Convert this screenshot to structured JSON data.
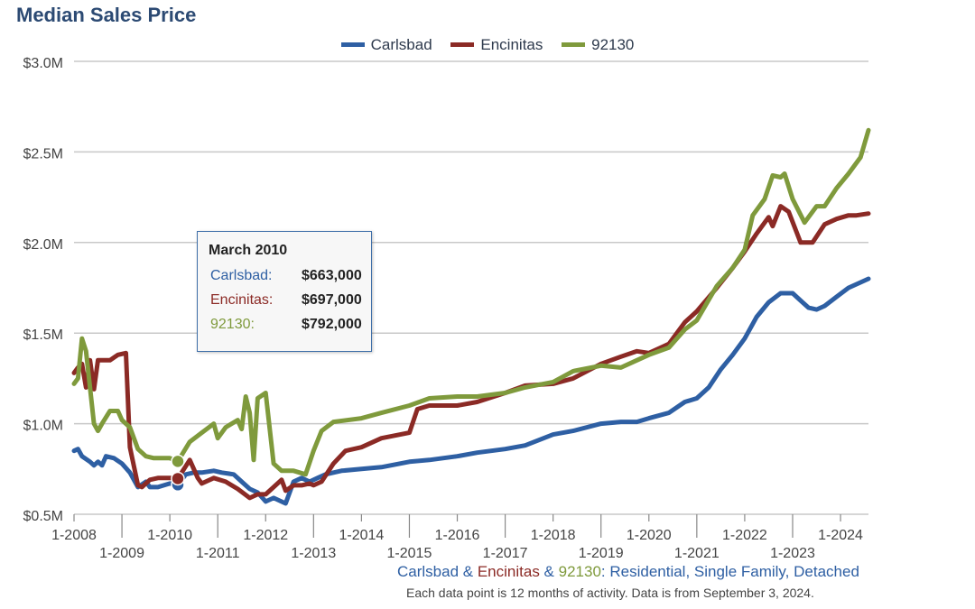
{
  "chart_data": {
    "type": "line",
    "title": "Median Sales Price",
    "y_tick_labels": [
      "$0.5M",
      "$1.0M",
      "$1.5M",
      "$2.0M",
      "$2.5M",
      "$3.0M"
    ],
    "y_ticks": [
      500000,
      1000000,
      1500000,
      2000000,
      2500000,
      3000000
    ],
    "ylim": [
      500000,
      3000000
    ],
    "x_range": [
      "2008-01",
      "2024-08"
    ],
    "x_tick_labels_upper": [
      "1-2008",
      "1-2010",
      "1-2012",
      "1-2014",
      "1-2016",
      "1-2018",
      "1-2020",
      "1-2022",
      "1-2024"
    ],
    "x_tick_labels_lower": [
      "1-2009",
      "1-2011",
      "1-2013",
      "1-2015",
      "1-2017",
      "1-2019",
      "1-2021",
      "1-2023"
    ],
    "grid": true,
    "legend_position": "top-center",
    "series": [
      {
        "name": "Carlsbad",
        "color": "#2e5fa3",
        "points": [
          [
            "2008-01",
            850000
          ],
          [
            "2008-02",
            860000
          ],
          [
            "2008-03",
            820000
          ],
          [
            "2008-05",
            790000
          ],
          [
            "2008-06",
            770000
          ],
          [
            "2008-07",
            790000
          ],
          [
            "2008-08",
            770000
          ],
          [
            "2008-09",
            820000
          ],
          [
            "2008-11",
            810000
          ],
          [
            "2009-01",
            780000
          ],
          [
            "2009-03",
            730000
          ],
          [
            "2009-05",
            650000
          ],
          [
            "2009-07",
            680000
          ],
          [
            "2009-08",
            650000
          ],
          [
            "2009-10",
            650000
          ],
          [
            "2010-01",
            670000
          ],
          [
            "2010-03",
            663000
          ],
          [
            "2010-05",
            720000
          ],
          [
            "2010-07",
            730000
          ],
          [
            "2010-09",
            730000
          ],
          [
            "2010-12",
            740000
          ],
          [
            "2011-02",
            730000
          ],
          [
            "2011-05",
            720000
          ],
          [
            "2011-07",
            680000
          ],
          [
            "2011-09",
            640000
          ],
          [
            "2011-11",
            620000
          ],
          [
            "2012-01",
            570000
          ],
          [
            "2012-03",
            590000
          ],
          [
            "2012-06",
            560000
          ],
          [
            "2012-08",
            680000
          ],
          [
            "2012-10",
            700000
          ],
          [
            "2012-12",
            680000
          ],
          [
            "2013-02",
            700000
          ],
          [
            "2013-04",
            720000
          ],
          [
            "2013-08",
            740000
          ],
          [
            "2014-01",
            750000
          ],
          [
            "2014-06",
            760000
          ],
          [
            "2015-01",
            790000
          ],
          [
            "2015-06",
            800000
          ],
          [
            "2016-01",
            820000
          ],
          [
            "2016-06",
            840000
          ],
          [
            "2017-01",
            860000
          ],
          [
            "2017-06",
            880000
          ],
          [
            "2018-01",
            940000
          ],
          [
            "2018-06",
            960000
          ],
          [
            "2019-01",
            1000000
          ],
          [
            "2019-06",
            1010000
          ],
          [
            "2019-10",
            1010000
          ],
          [
            "2020-01",
            1030000
          ],
          [
            "2020-06",
            1060000
          ],
          [
            "2020-10",
            1120000
          ],
          [
            "2021-01",
            1140000
          ],
          [
            "2021-04",
            1200000
          ],
          [
            "2021-07",
            1300000
          ],
          [
            "2021-10",
            1380000
          ],
          [
            "2022-01",
            1470000
          ],
          [
            "2022-04",
            1590000
          ],
          [
            "2022-07",
            1670000
          ],
          [
            "2022-10",
            1720000
          ],
          [
            "2023-01",
            1720000
          ],
          [
            "2023-03",
            1680000
          ],
          [
            "2023-05",
            1640000
          ],
          [
            "2023-07",
            1630000
          ],
          [
            "2023-09",
            1650000
          ],
          [
            "2023-12",
            1700000
          ],
          [
            "2024-03",
            1750000
          ],
          [
            "2024-06",
            1780000
          ],
          [
            "2024-08",
            1800000
          ]
        ]
      },
      {
        "name": "Encinitas",
        "color": "#8b2a25",
        "points": [
          [
            "2008-01",
            1280000
          ],
          [
            "2008-02",
            1310000
          ],
          [
            "2008-03",
            1330000
          ],
          [
            "2008-04",
            1200000
          ],
          [
            "2008-05",
            1350000
          ],
          [
            "2008-06",
            1190000
          ],
          [
            "2008-07",
            1350000
          ],
          [
            "2008-10",
            1350000
          ],
          [
            "2008-12",
            1380000
          ],
          [
            "2009-02",
            1390000
          ],
          [
            "2009-03",
            870000
          ],
          [
            "2009-05",
            660000
          ],
          [
            "2009-06",
            650000
          ],
          [
            "2009-08",
            690000
          ],
          [
            "2009-10",
            700000
          ],
          [
            "2010-01",
            700000
          ],
          [
            "2010-03",
            697000
          ],
          [
            "2010-06",
            800000
          ],
          [
            "2010-08",
            700000
          ],
          [
            "2010-09",
            670000
          ],
          [
            "2010-12",
            700000
          ],
          [
            "2011-03",
            680000
          ],
          [
            "2011-06",
            640000
          ],
          [
            "2011-09",
            590000
          ],
          [
            "2011-11",
            610000
          ],
          [
            "2012-01",
            610000
          ],
          [
            "2012-03",
            650000
          ],
          [
            "2012-05",
            690000
          ],
          [
            "2012-06",
            630000
          ],
          [
            "2012-08",
            660000
          ],
          [
            "2012-10",
            660000
          ],
          [
            "2012-12",
            670000
          ],
          [
            "2013-01",
            660000
          ],
          [
            "2013-03",
            680000
          ],
          [
            "2013-06",
            780000
          ],
          [
            "2013-09",
            850000
          ],
          [
            "2014-01",
            870000
          ],
          [
            "2014-06",
            920000
          ],
          [
            "2015-01",
            950000
          ],
          [
            "2015-03",
            1080000
          ],
          [
            "2015-06",
            1100000
          ],
          [
            "2016-01",
            1100000
          ],
          [
            "2016-06",
            1120000
          ],
          [
            "2017-01",
            1170000
          ],
          [
            "2017-06",
            1210000
          ],
          [
            "2018-01",
            1220000
          ],
          [
            "2018-06",
            1250000
          ],
          [
            "2019-01",
            1330000
          ],
          [
            "2019-06",
            1370000
          ],
          [
            "2019-10",
            1400000
          ],
          [
            "2020-01",
            1390000
          ],
          [
            "2020-06",
            1440000
          ],
          [
            "2020-10",
            1560000
          ],
          [
            "2021-01",
            1620000
          ],
          [
            "2021-06",
            1750000
          ],
          [
            "2021-10",
            1860000
          ],
          [
            "2022-01",
            1950000
          ],
          [
            "2022-04",
            2050000
          ],
          [
            "2022-07",
            2140000
          ],
          [
            "2022-08",
            2090000
          ],
          [
            "2022-10",
            2200000
          ],
          [
            "2022-12",
            2170000
          ],
          [
            "2023-03",
            2000000
          ],
          [
            "2023-06",
            2000000
          ],
          [
            "2023-09",
            2100000
          ],
          [
            "2023-12",
            2130000
          ],
          [
            "2024-03",
            2150000
          ],
          [
            "2024-05",
            2150000
          ],
          [
            "2024-08",
            2160000
          ]
        ]
      },
      {
        "name": "92130",
        "color": "#7f9a3c",
        "points": [
          [
            "2008-01",
            1220000
          ],
          [
            "2008-02",
            1250000
          ],
          [
            "2008-03",
            1470000
          ],
          [
            "2008-04",
            1400000
          ],
          [
            "2008-06",
            1000000
          ],
          [
            "2008-07",
            960000
          ],
          [
            "2008-08",
            1000000
          ],
          [
            "2008-10",
            1070000
          ],
          [
            "2008-12",
            1070000
          ],
          [
            "2009-01",
            1020000
          ],
          [
            "2009-03",
            980000
          ],
          [
            "2009-05",
            860000
          ],
          [
            "2009-07",
            820000
          ],
          [
            "2009-09",
            810000
          ],
          [
            "2009-12",
            810000
          ],
          [
            "2010-01",
            810000
          ],
          [
            "2010-03",
            792000
          ],
          [
            "2010-06",
            900000
          ],
          [
            "2010-09",
            950000
          ],
          [
            "2010-12",
            1000000
          ],
          [
            "2011-01",
            920000
          ],
          [
            "2011-03",
            980000
          ],
          [
            "2011-06",
            1020000
          ],
          [
            "2011-07",
            970000
          ],
          [
            "2011-08",
            1150000
          ],
          [
            "2011-09",
            1060000
          ],
          [
            "2011-10",
            800000
          ],
          [
            "2011-11",
            1140000
          ],
          [
            "2012-01",
            1170000
          ],
          [
            "2012-03",
            780000
          ],
          [
            "2012-05",
            740000
          ],
          [
            "2012-08",
            740000
          ],
          [
            "2012-11",
            720000
          ],
          [
            "2013-01",
            850000
          ],
          [
            "2013-03",
            960000
          ],
          [
            "2013-06",
            1010000
          ],
          [
            "2014-01",
            1030000
          ],
          [
            "2014-06",
            1060000
          ],
          [
            "2015-01",
            1100000
          ],
          [
            "2015-06",
            1140000
          ],
          [
            "2016-01",
            1150000
          ],
          [
            "2016-06",
            1150000
          ],
          [
            "2017-01",
            1170000
          ],
          [
            "2017-06",
            1200000
          ],
          [
            "2018-01",
            1230000
          ],
          [
            "2018-06",
            1290000
          ],
          [
            "2019-01",
            1320000
          ],
          [
            "2019-06",
            1310000
          ],
          [
            "2019-10",
            1350000
          ],
          [
            "2020-01",
            1380000
          ],
          [
            "2020-06",
            1420000
          ],
          [
            "2020-10",
            1520000
          ],
          [
            "2021-01",
            1570000
          ],
          [
            "2021-06",
            1760000
          ],
          [
            "2021-10",
            1860000
          ],
          [
            "2022-01",
            1960000
          ],
          [
            "2022-03",
            2150000
          ],
          [
            "2022-06",
            2240000
          ],
          [
            "2022-08",
            2370000
          ],
          [
            "2022-10",
            2360000
          ],
          [
            "2022-11",
            2380000
          ],
          [
            "2023-01",
            2240000
          ],
          [
            "2023-04",
            2110000
          ],
          [
            "2023-07",
            2200000
          ],
          [
            "2023-09",
            2200000
          ],
          [
            "2023-12",
            2300000
          ],
          [
            "2024-03",
            2380000
          ],
          [
            "2024-06",
            2470000
          ],
          [
            "2024-08",
            2620000
          ]
        ]
      }
    ],
    "highlight_month": "2010-03"
  },
  "legend": [
    "Carlsbad",
    "Encinitas",
    "92130"
  ],
  "tooltip": {
    "title": "March 2010",
    "rows": [
      {
        "label": "Carlsbad:",
        "value": "$663,000",
        "color": "#2e5fa3"
      },
      {
        "label": "Encinitas:",
        "value": "$697,000",
        "color": "#8b2a25"
      },
      {
        "label": "92130:",
        "value": "$792,000",
        "color": "#7f9a3c"
      }
    ]
  },
  "footer": {
    "line1_parts": [
      {
        "text": "Carlsbad",
        "color": "#2e5fa3"
      },
      {
        "text": " & ",
        "color": "#2e5fa3"
      },
      {
        "text": "Encinitas",
        "color": "#8b2a25"
      },
      {
        "text": " & ",
        "color": "#2e5fa3"
      },
      {
        "text": "92130",
        "color": "#7f9a3c"
      },
      {
        "text": ": Residential, Single Family, Detached",
        "color": "#2e5fa3"
      }
    ],
    "line2": "Each data point is 12 months of activity. Data is from September 3, 2024."
  }
}
